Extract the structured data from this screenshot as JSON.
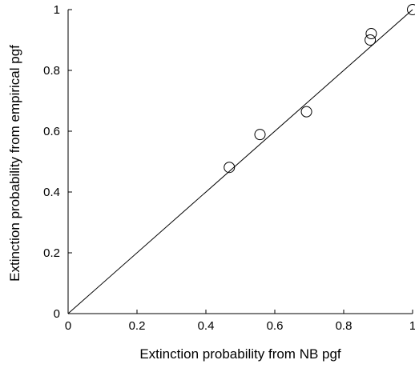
{
  "chart_data": {
    "type": "scatter",
    "title": "",
    "xlabel": "Extinction probability from NB pgf",
    "ylabel": "Extinction probability from empirical pgf",
    "xlim": [
      0,
      1
    ],
    "ylim": [
      0,
      1
    ],
    "xticks": [
      0,
      0.2,
      0.4,
      0.6,
      0.8,
      1
    ],
    "yticks": [
      0,
      0.2,
      0.4,
      0.6,
      0.8,
      1
    ],
    "xtick_labels": [
      "0",
      "0.2",
      "0.4",
      "0.6",
      "0.8",
      "1"
    ],
    "ytick_labels": [
      "0",
      "0.2",
      "0.4",
      "0.6",
      "0.8",
      "1"
    ],
    "grid": false,
    "box": "left-bottom",
    "marker": "open-circle",
    "reference_line": {
      "x": [
        0,
        1
      ],
      "y": [
        0,
        1
      ]
    },
    "series": [
      {
        "points": [
          {
            "x": 0.468,
            "y": 0.481
          },
          {
            "x": 0.557,
            "y": 0.589
          },
          {
            "x": 0.692,
            "y": 0.664
          },
          {
            "x": 0.877,
            "y": 0.9
          },
          {
            "x": 0.88,
            "y": 0.921
          },
          {
            "x": 1.0,
            "y": 1.0
          }
        ]
      }
    ]
  }
}
